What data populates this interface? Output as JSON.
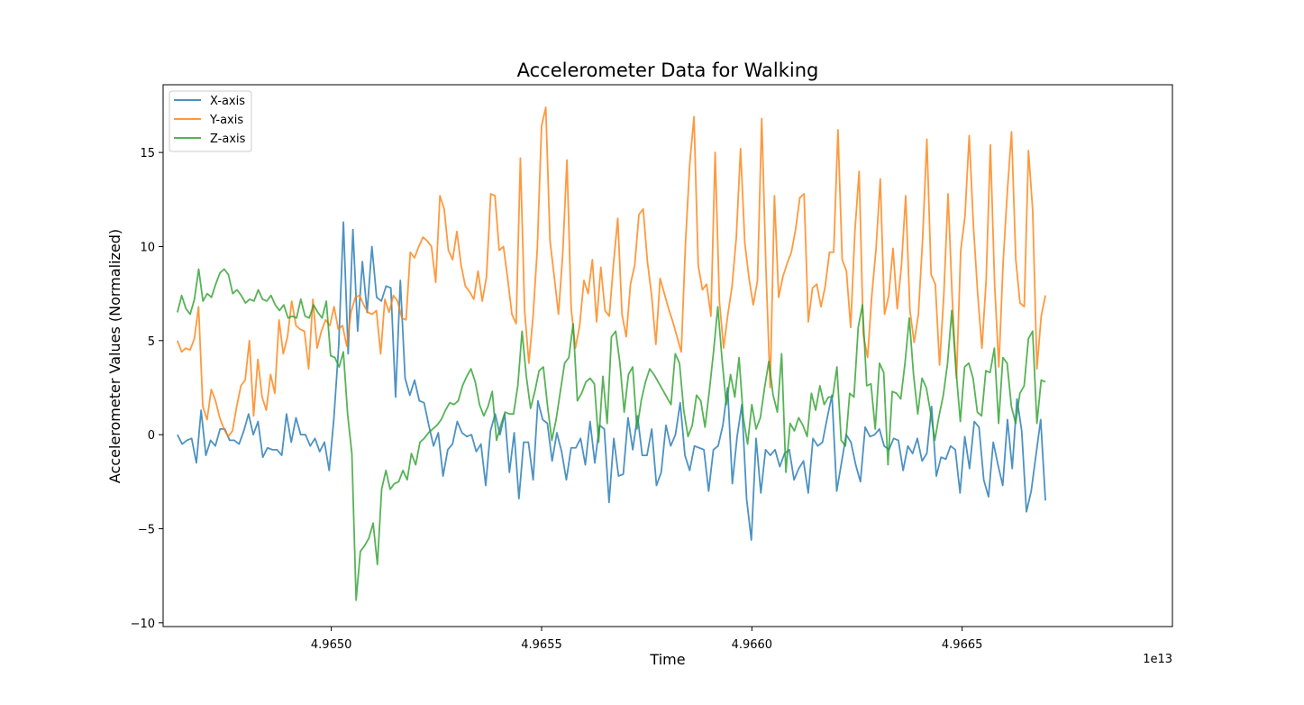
{
  "chart_data": {
    "type": "line",
    "title": "Accelerometer Data for Walking",
    "xlabel": "Time",
    "ylabel": "Accelerometer Values (Normalized)",
    "x_offset_text": "1e13",
    "xlim": [
      49646.0,
      49670.0
    ],
    "ylim": [
      -10.2,
      18.6
    ],
    "x_ticks": [
      49650,
      49655,
      49660,
      49665
    ],
    "x_tick_labels": [
      "4.9650",
      "4.9655",
      "4.9660",
      "4.9665"
    ],
    "y_ticks": [
      -10,
      -5,
      0,
      5,
      10,
      15
    ],
    "y_tick_labels": [
      "−10",
      "−5",
      "0",
      "5",
      "10",
      "15"
    ],
    "legend_position": "top-left",
    "x_start": 49646.34,
    "x_end": 49666.98,
    "series": [
      {
        "name": "X-axis",
        "color": "#1f77b4",
        "values": [
          0.0,
          -0.5,
          -0.3,
          -0.2,
          -1.5,
          1.3,
          -1.1,
          -0.3,
          -0.6,
          0.3,
          0.3,
          -0.3,
          -0.3,
          -0.5,
          0.2,
          1.1,
          0.0,
          0.7,
          -1.2,
          -0.7,
          -0.8,
          -0.8,
          -1.1,
          1.1,
          -0.4,
          0.9,
          0.0,
          0.0,
          -0.6,
          -0.2,
          -0.9,
          -0.4,
          -1.9,
          0.9,
          4.7,
          11.3,
          4.3,
          10.9,
          5.5,
          9.2,
          6.5,
          10.0,
          7.3,
          7.1,
          7.9,
          7.8,
          2.0,
          8.2,
          3.0,
          2.1,
          2.9,
          1.8,
          1.7,
          0.5,
          -0.6,
          0.1,
          -2.2,
          -0.8,
          -0.5,
          0.7,
          0.1,
          -0.1,
          0.0,
          -0.9,
          -0.5,
          -2.7,
          0.2,
          1.1,
          0.0,
          1.1,
          -2.0,
          0.1,
          -3.4,
          -0.4,
          -0.4,
          -2.4,
          1.8,
          0.8,
          0.6,
          -1.4,
          0.1,
          -0.9,
          -2.4,
          -0.7,
          -0.7,
          -0.2,
          -1.6,
          0.7,
          -1.5,
          0.5,
          0.3,
          -3.6,
          -0.2,
          -2.2,
          -2.1,
          0.9,
          -0.8,
          1.0,
          -1.1,
          -1.1,
          0.3,
          -2.7,
          -2.0,
          0.5,
          -0.6,
          0.0,
          1.7,
          -1.1,
          -1.9,
          -0.6,
          -0.7,
          -0.8,
          -3.0,
          -0.8,
          -0.6,
          0.5,
          2.5,
          -2.6,
          -0.1,
          1.6,
          -3.4,
          -5.6,
          -0.2,
          -3.1,
          -0.8,
          -1.1,
          -0.8,
          -1.7,
          -1.0,
          -0.8,
          -2.4,
          -1.8,
          -1.4,
          -3.1,
          -0.2,
          -0.6,
          -0.4,
          0.9,
          2.1,
          -3.0,
          -1.5,
          0.0,
          -0.4,
          -1.6,
          -2.5,
          0.4,
          -0.1,
          0.0,
          0.3,
          -0.6,
          -0.8,
          -0.2,
          -0.3,
          -1.9,
          -0.6,
          -1.0,
          -0.2,
          -1.4,
          -1.0,
          1.5,
          -2.2,
          -1.2,
          -1.3,
          -0.6,
          -0.8,
          -3.1,
          -0.1,
          -1.8,
          0.7,
          0.4,
          -2.4,
          -3.3,
          -0.4,
          -1.6,
          -2.7,
          0.8,
          -1.8,
          1.9,
          0.2,
          -4.1,
          -3.0,
          -1.1,
          0.8,
          -3.5
        ]
      },
      {
        "name": "Y-axis",
        "color": "#ff7f0e",
        "values": [
          5.0,
          4.4,
          4.6,
          4.5,
          5.1,
          6.8,
          1.5,
          0.8,
          2.4,
          1.8,
          0.9,
          0.3,
          -0.1,
          0.2,
          1.5,
          2.6,
          2.9,
          5.0,
          1.0,
          4.0,
          2.0,
          1.3,
          3.2,
          2.2,
          6.1,
          4.3,
          5.2,
          7.1,
          5.8,
          5.6,
          5.5,
          3.5,
          7.2,
          4.6,
          5.5,
          6.1,
          5.8,
          6.8,
          5.6,
          5.8,
          4.7,
          6.5,
          7.3,
          7.4,
          6.9,
          6.5,
          6.4,
          6.6,
          4.3,
          7.2,
          6.5,
          7.4,
          7.1,
          6.2,
          6.1,
          9.7,
          9.4,
          10.0,
          10.5,
          10.3,
          10.0,
          8.1,
          12.7,
          12.0,
          9.8,
          9.3,
          10.8,
          9.0,
          7.9,
          7.6,
          7.2,
          8.7,
          7.1,
          8.4,
          12.8,
          12.7,
          9.8,
          10.0,
          8.3,
          6.4,
          5.9,
          14.7,
          6.6,
          3.8,
          6.3,
          9.9,
          16.4,
          17.4,
          10.3,
          8.4,
          6.4,
          9.6,
          14.6,
          6.7,
          4.6,
          5.8,
          8.2,
          7.5,
          9.3,
          6.0,
          8.9,
          6.6,
          6.3,
          9.1,
          11.5,
          6.4,
          5.2,
          8.0,
          9.0,
          11.7,
          12.0,
          9.2,
          7.4,
          4.8,
          8.3,
          7.5,
          6.7,
          6.0,
          5.2,
          4.4,
          10.2,
          14.4,
          16.9,
          9.0,
          7.7,
          8.0,
          6.3,
          15.0,
          7.1,
          4.6,
          6.4,
          7.9,
          10.5,
          15.2,
          10.2,
          8.3,
          6.9,
          8.2,
          16.8,
          8.8,
          2.5,
          12.7,
          7.3,
          8.4,
          9.1,
          9.7,
          10.9,
          12.6,
          12.8,
          6.0,
          7.8,
          8.0,
          6.8,
          7.9,
          9.7,
          9.7,
          16.2,
          9.3,
          8.7,
          5.7,
          10.8,
          14.0,
          5.3,
          4.1,
          7.4,
          9.9,
          13.6,
          6.4,
          7.4,
          9.9,
          6.7,
          9.0,
          12.7,
          6.6,
          4.9,
          6.4,
          10.4,
          15.7,
          8.5,
          8.0,
          3.7,
          7.4,
          12.8,
          7.2,
          3.0,
          9.8,
          11.6,
          15.9,
          11.1,
          7.5,
          4.6,
          8.2,
          15.4,
          8.0,
          3.6,
          9.1,
          12.9,
          16.1,
          9.3,
          7.0,
          6.8,
          15.1,
          11.9,
          3.5,
          6.3,
          7.4
        ]
      },
      {
        "name": "Z-axis",
        "color": "#2ca02c",
        "values": [
          6.5,
          7.4,
          6.7,
          6.4,
          7.2,
          8.8,
          7.1,
          7.5,
          7.3,
          8.0,
          8.6,
          8.8,
          8.5,
          7.5,
          7.7,
          7.4,
          7.0,
          7.2,
          7.1,
          7.7,
          7.2,
          7.1,
          7.4,
          6.9,
          6.6,
          6.9,
          6.2,
          6.3,
          6.2,
          7.2,
          6.3,
          6.2,
          6.9,
          6.5,
          6.2,
          7.1,
          4.2,
          4.1,
          3.6,
          4.4,
          1.1,
          -1.0,
          -8.8,
          -6.2,
          -5.9,
          -5.5,
          -4.7,
          -6.9,
          -2.9,
          -1.9,
          -2.9,
          -2.6,
          -2.5,
          -1.9,
          -2.4,
          -1.0,
          -1.6,
          -0.4,
          -0.2,
          0.1,
          0.3,
          0.5,
          0.8,
          1.3,
          1.7,
          1.6,
          1.8,
          2.6,
          3.1,
          3.5,
          2.8,
          1.6,
          1.0,
          1.5,
          2.3,
          -0.3,
          0.5,
          1.2,
          1.1,
          1.1,
          2.6,
          5.5,
          3.1,
          1.4,
          2.3,
          3.4,
          3.6,
          1.5,
          -0.3,
          0.8,
          2.3,
          3.8,
          4.1,
          5.9,
          1.8,
          2.2,
          2.8,
          3.0,
          2.7,
          -0.4,
          3.1,
          0.6,
          5.2,
          5.5,
          3.8,
          1.2,
          3.2,
          3.6,
          0.3,
          1.8,
          2.8,
          3.5,
          3.2,
          2.8,
          2.4,
          2.0,
          1.6,
          4.3,
          3.8,
          1.3,
          -0.1,
          0.5,
          2.1,
          1.8,
          0.4,
          2.3,
          4.4,
          6.8,
          4.0,
          1.6,
          3.2,
          2.0,
          4.1,
          0.9,
          -0.5,
          1.6,
          0.3,
          0.9,
          2.5,
          3.9,
          2.1,
          1.2,
          4.3,
          -2.0,
          0.6,
          0.2,
          0.9,
          0.5,
          -0.1,
          2.2,
          1.3,
          2.6,
          1.6,
          2.0,
          2.0,
          3.6,
          -0.3,
          -0.6,
          2.2,
          2.0,
          5.7,
          6.9,
          2.6,
          2.7,
          0.3,
          3.8,
          3.3,
          -1.6,
          2.3,
          2.2,
          1.9,
          3.8,
          6.2,
          3.2,
          1.1,
          3.0,
          2.5,
          1.2,
          -0.3,
          1.0,
          2.1,
          3.8,
          6.6,
          3.4,
          0.7,
          3.6,
          3.8,
          3.0,
          1.2,
          1.0,
          3.4,
          3.3,
          4.6,
          0.6,
          4.1,
          3.8,
          1.5,
          0.6,
          2.2,
          2.6,
          5.1,
          5.5,
          0.6,
          2.9,
          2.8
        ]
      }
    ]
  }
}
